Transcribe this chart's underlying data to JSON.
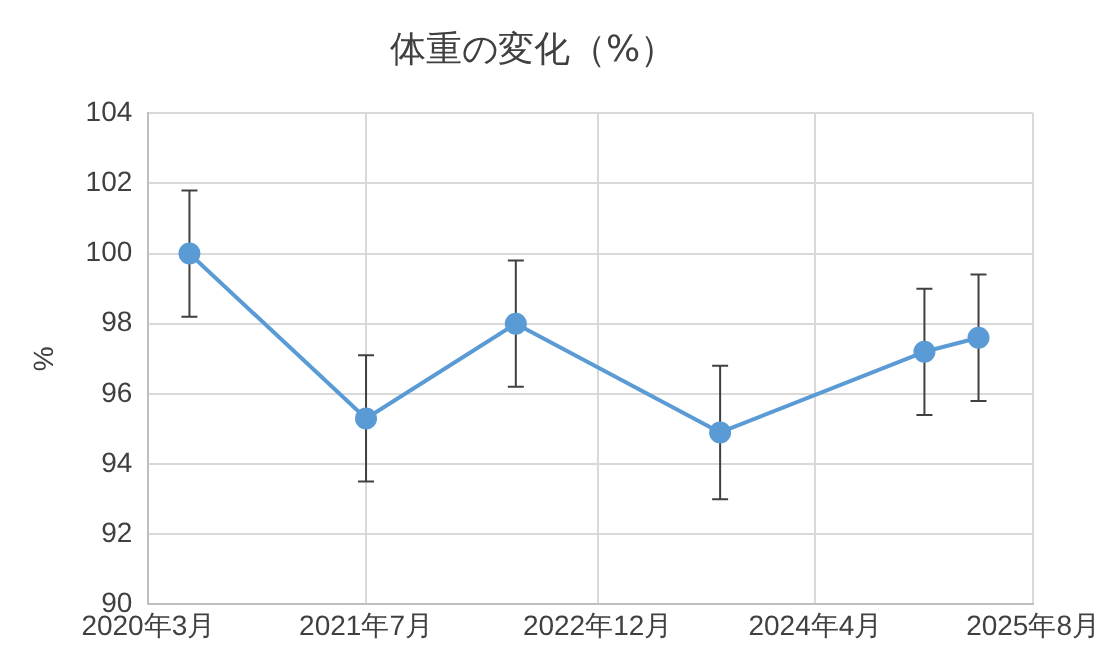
{
  "chart_data": {
    "type": "line",
    "title": "体重の変化（%）",
    "ylabel": "%",
    "x": [
      "2020-06",
      "2021-07",
      "2022-06",
      "2023-09",
      "2024-12",
      "2025-04"
    ],
    "series": [
      {
        "color": "#5b9bd5",
        "values": [
          100.0,
          95.3,
          98.0,
          94.9,
          97.2,
          97.6
        ],
        "errors": [
          1.8,
          1.8,
          1.8,
          1.9,
          1.8,
          1.8
        ]
      }
    ],
    "xlim": [
      "2020-03",
      "2025-08"
    ],
    "xticks": [
      {
        "value": "2020-03",
        "label": "2020年3月"
      },
      {
        "value": "2021-07",
        "label": "2021年7月"
      },
      {
        "value": "2022-12",
        "label": "2022年12月"
      },
      {
        "value": "2024-04",
        "label": "2024年4月"
      },
      {
        "value": "2025-08",
        "label": "2025年8月"
      }
    ],
    "ylim": [
      90,
      104
    ],
    "yticks": [
      90,
      92,
      94,
      96,
      98,
      100,
      102,
      104
    ],
    "grid": true,
    "legend": false,
    "marker": "circle",
    "line_style": "solid"
  }
}
